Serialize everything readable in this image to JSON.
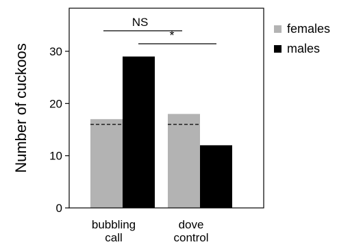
{
  "chart_data": {
    "type": "bar",
    "title": "",
    "xlabel": "",
    "ylabel": "Number of cuckoos",
    "categories": [
      "bubbling\ncall",
      "dove\ncontrol"
    ],
    "series": [
      {
        "name": "females",
        "color": "#b3b3b3",
        "values": [
          17,
          18
        ]
      },
      {
        "name": "males",
        "color": "#000000",
        "values": [
          29,
          12
        ]
      }
    ],
    "ylim": [
      0,
      38
    ],
    "yticks": [
      0,
      10,
      20,
      30
    ],
    "expected_line": {
      "style": "dashed",
      "values": [
        16,
        16
      ]
    },
    "significance": [
      {
        "label": "NS",
        "from": "bubbling call females",
        "to": "dove control females"
      },
      {
        "label": "*",
        "from": "bubbling call males",
        "to": "dove control males"
      }
    ],
    "legend": {
      "position": "right",
      "entries": [
        "females",
        "males"
      ]
    },
    "grid": false
  }
}
